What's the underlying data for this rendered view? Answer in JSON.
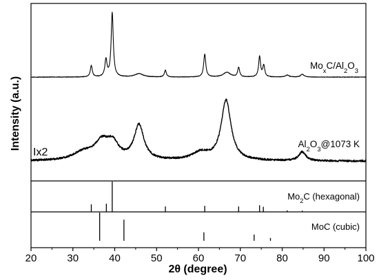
{
  "chart_data": {
    "type": "line",
    "xlabel": "2θ (degree)",
    "ylabel": "Intensity (a.u.)",
    "xlim": [
      20,
      100
    ],
    "xticks": [
      20,
      30,
      40,
      50,
      60,
      70,
      80,
      90,
      100
    ],
    "series": [
      {
        "name": "MoxC/Al2O3",
        "label": {
          "parts": [
            {
              "t": "Mo",
              "s": ""
            },
            {
              "t": "x",
              "s": "sub"
            },
            {
              "t": "C/Al",
              "s": ""
            },
            {
              "t": "2",
              "s": "sub"
            },
            {
              "t": "O",
              "s": ""
            },
            {
              "t": "3",
              "s": "sub"
            }
          ]
        },
        "baseline": 0.05,
        "noise": 0.004,
        "peaks": [
          {
            "x": 34.4,
            "h": 0.17,
            "w": 0.28
          },
          {
            "x": 37.9,
            "h": 0.25,
            "w": 0.3
          },
          {
            "x": 39.4,
            "h": 0.95,
            "w": 0.3
          },
          {
            "x": 45.8,
            "h": 0.05,
            "w": 1.2
          },
          {
            "x": 52.1,
            "h": 0.1,
            "w": 0.28
          },
          {
            "x": 61.5,
            "h": 0.34,
            "w": 0.3
          },
          {
            "x": 66.8,
            "h": 0.07,
            "w": 1.0
          },
          {
            "x": 69.6,
            "h": 0.14,
            "w": 0.28
          },
          {
            "x": 74.6,
            "h": 0.3,
            "w": 0.28
          },
          {
            "x": 75.6,
            "h": 0.17,
            "w": 0.28
          },
          {
            "x": 81.2,
            "h": 0.03,
            "w": 0.5
          },
          {
            "x": 84.8,
            "h": 0.04,
            "w": 0.5
          }
        ]
      },
      {
        "name": "Al2O3@1073 K",
        "label": {
          "parts": [
            {
              "t": "Al",
              "s": ""
            },
            {
              "t": "2",
              "s": "sub"
            },
            {
              "t": "O",
              "s": ""
            },
            {
              "t": "3",
              "s": "sub"
            },
            {
              "t": "@1073 K",
              "s": ""
            }
          ]
        },
        "scale_label": "Ix2",
        "baseline": 0.04,
        "noise": 0.015,
        "peaks": [
          {
            "x": 32.5,
            "h": 0.12,
            "w": 3.0
          },
          {
            "x": 37.0,
            "h": 0.28,
            "w": 2.2
          },
          {
            "x": 39.6,
            "h": 0.22,
            "w": 1.6
          },
          {
            "x": 45.8,
            "h": 0.55,
            "w": 1.4
          },
          {
            "x": 60.5,
            "h": 0.12,
            "w": 2.5
          },
          {
            "x": 66.6,
            "h": 0.95,
            "w": 1.4
          },
          {
            "x": 84.8,
            "h": 0.14,
            "w": 1.0
          }
        ]
      }
    ],
    "references": [
      {
        "name": "Mo2C (hexagonal)",
        "label": {
          "parts": [
            {
              "t": "Mo",
              "s": ""
            },
            {
              "t": "2",
              "s": "sub"
            },
            {
              "t": "C (hexagonal)",
              "s": ""
            }
          ]
        },
        "lines": [
          {
            "x": 34.4,
            "i": 0.25
          },
          {
            "x": 38.0,
            "i": 0.27
          },
          {
            "x": 39.4,
            "i": 1.0
          },
          {
            "x": 52.1,
            "i": 0.18
          },
          {
            "x": 61.5,
            "i": 0.2
          },
          {
            "x": 69.6,
            "i": 0.18
          },
          {
            "x": 74.6,
            "i": 0.22
          },
          {
            "x": 75.5,
            "i": 0.17
          },
          {
            "x": 81.2,
            "i": 0.05
          },
          {
            "x": 84.8,
            "i": 0.04
          }
        ]
      },
      {
        "name": "MoC (cubic)",
        "label": {
          "parts": [
            {
              "t": "MoC (cubic)",
              "s": ""
            }
          ]
        },
        "lines": [
          {
            "x": 36.4,
            "i": 1.0
          },
          {
            "x": 42.2,
            "i": 0.75
          },
          {
            "x": 61.3,
            "i": 0.3
          },
          {
            "x": 73.3,
            "i": 0.22
          },
          {
            "x": 77.2,
            "i": 0.1
          }
        ]
      }
    ],
    "grid": false,
    "legend": "inline labels"
  }
}
